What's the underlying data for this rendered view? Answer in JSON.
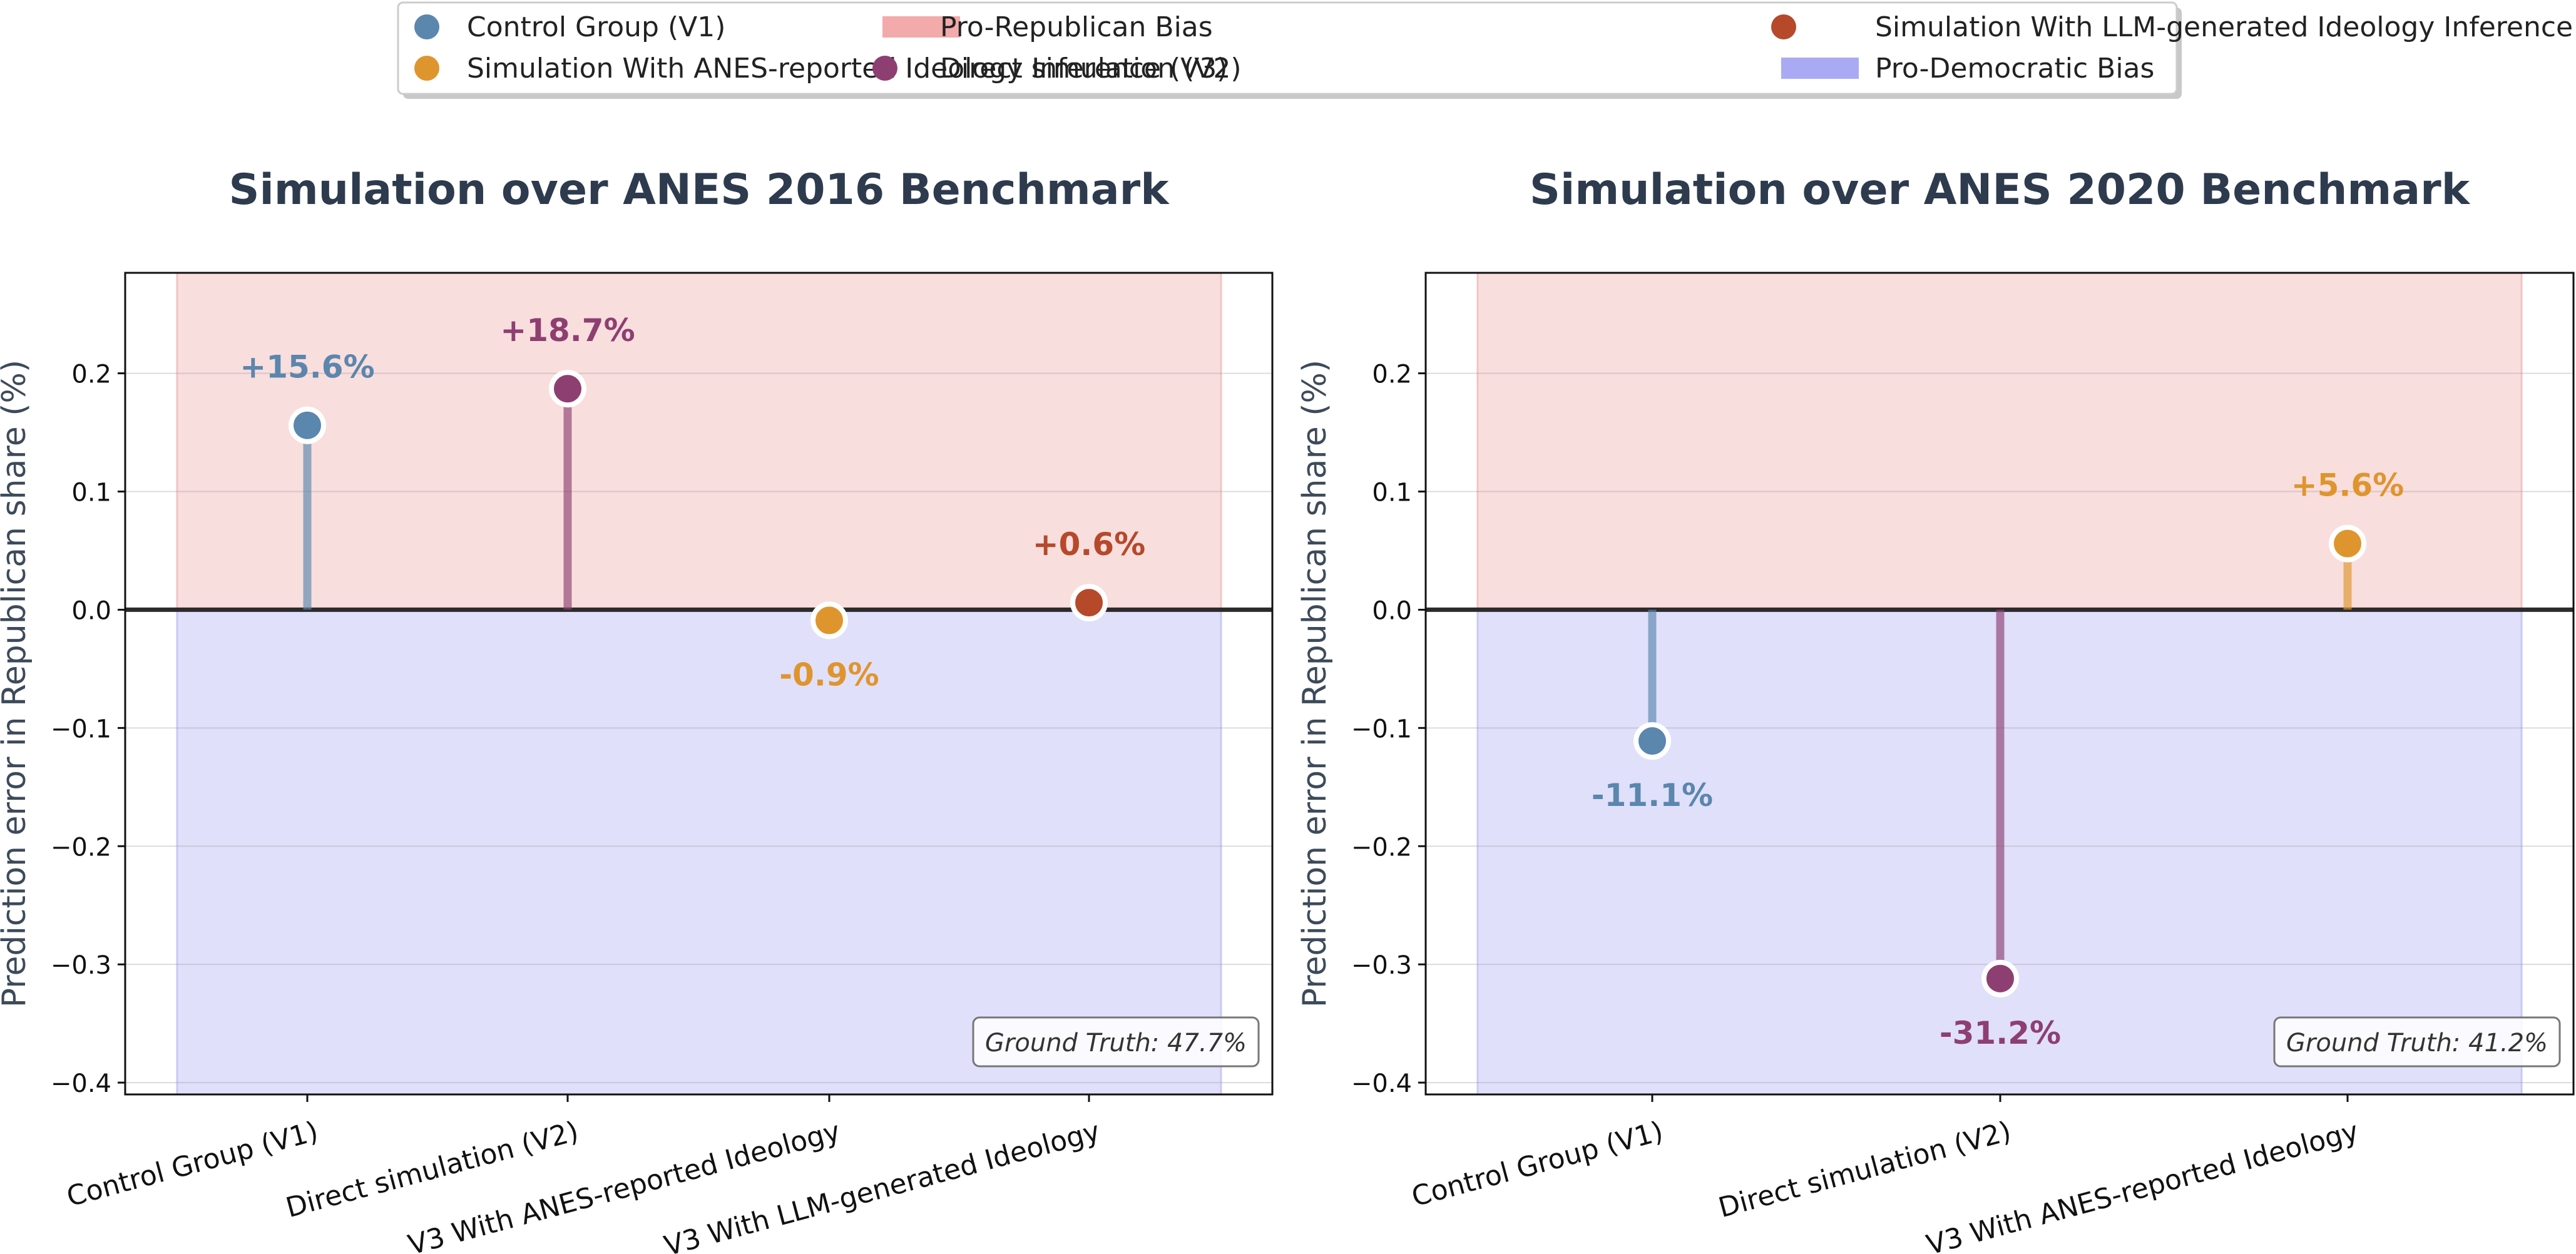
{
  "legend": {
    "items": [
      {
        "label": "Control Group (V1)",
        "kind": "dot",
        "color": "#5b86ad"
      },
      {
        "label": "Simulation With ANES-reported Ideology Inference (V3)",
        "kind": "dot",
        "color": "#df952d"
      },
      {
        "label": "Pro-Republican Bias",
        "kind": "patch",
        "color": "#f2aaaa"
      },
      {
        "label": "Direct simulation (V2)",
        "kind": "dot",
        "color": "#8e3f72"
      },
      {
        "label": "Simulation With LLM-generated Ideology Inference (V3)",
        "kind": "dot",
        "color": "#b5492a"
      },
      {
        "label": "Pro-Democratic Bias",
        "kind": "patch",
        "color": "#aaaaf4"
      }
    ]
  },
  "chart_data": [
    {
      "type": "lollipop",
      "title": "Simulation over ANES 2016 Benchmark",
      "ylabel": "Prediction error in Republican share (%)",
      "xlabel": "",
      "ylim": [
        -0.41,
        0.285
      ],
      "yticks": [
        -0.4,
        -0.3,
        -0.2,
        -0.1,
        0.0,
        0.1,
        0.2
      ],
      "ytick_labels": [
        "−0.4",
        "−0.3",
        "−0.2",
        "−0.1",
        "0.0",
        "0.1",
        "0.2"
      ],
      "grid": true,
      "annotation": "Ground Truth: 47.7%",
      "categories": [
        "Control Group (V1)",
        "Direct simulation (V2)",
        "V3 With ANES-reported Ideology",
        "V3 With LLM-generated Ideology"
      ],
      "values": [
        0.156,
        0.187,
        -0.009,
        0.006
      ],
      "value_labels": [
        "+15.6%",
        "+18.7%",
        "-0.9%",
        "+0.6%"
      ],
      "colors": [
        "#5b86ad",
        "#8e3f72",
        "#df952d",
        "#b5492a"
      ]
    },
    {
      "type": "lollipop",
      "title": "Simulation over ANES 2020 Benchmark",
      "ylabel": "Prediction error in Republican share (%)",
      "xlabel": "",
      "ylim": [
        -0.41,
        0.285
      ],
      "yticks": [
        -0.4,
        -0.3,
        -0.2,
        -0.1,
        0.0,
        0.1,
        0.2
      ],
      "ytick_labels": [
        "−0.4",
        "−0.3",
        "−0.2",
        "−0.1",
        "0.0",
        "0.1",
        "0.2"
      ],
      "grid": true,
      "annotation": "Ground Truth: 41.2%",
      "categories": [
        "Control Group (V1)",
        "Direct simulation (V2)",
        "V3 With ANES-reported Ideology"
      ],
      "values": [
        -0.111,
        -0.312,
        0.056
      ],
      "value_labels": [
        "-11.1%",
        "-31.2%",
        "+5.6%"
      ],
      "colors": [
        "#5b86ad",
        "#8e3f72",
        "#df952d"
      ]
    }
  ]
}
